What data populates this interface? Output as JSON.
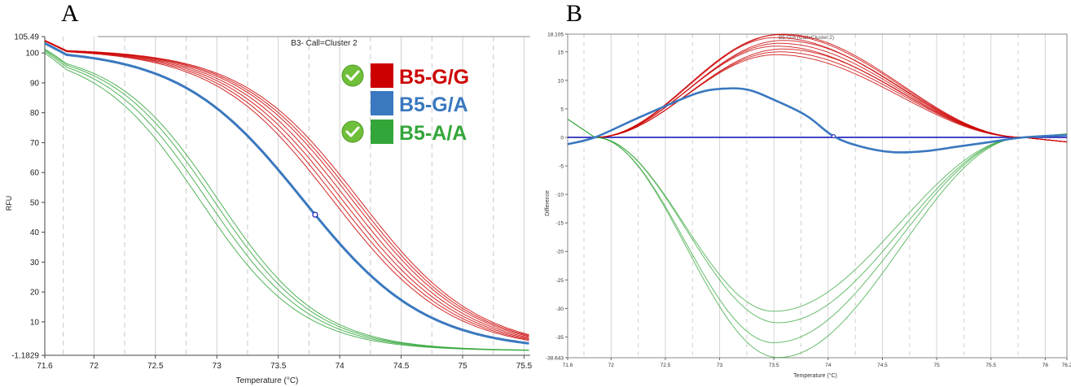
{
  "panel_labels": {
    "a": "A",
    "b": "B"
  },
  "colors": {
    "gg": "#cc0000",
    "ga": "#3a78bf",
    "aa": "#33a63a",
    "baseline": "#1a1ab8",
    "check": "#6fbf3a"
  },
  "chart_data": [
    {
      "type": "line",
      "plot_title": "B3- Call=Cluster 2",
      "xlabel": "Temperature (°C)",
      "ylabel": "RFU",
      "xlim": [
        71.6,
        75.55
      ],
      "ylim": [
        -1.1829,
        105.49
      ],
      "xticks": [
        "71.6",
        "72",
        "72.5",
        "73",
        "73.5",
        "74",
        "74.5",
        "75",
        "75.5"
      ],
      "xtick_values": [
        71.6,
        72,
        72.5,
        73,
        73.5,
        74,
        74.5,
        75,
        75.5
      ],
      "yticks": [
        "-1.1829",
        "10",
        "20",
        "30",
        "40",
        "50",
        "60",
        "70",
        "80",
        "90",
        "100",
        "105.49"
      ],
      "ytick_values": [
        -1.1829,
        10,
        20,
        30,
        40,
        50,
        60,
        70,
        80,
        90,
        100,
        105.49
      ],
      "grid": true,
      "legend": {
        "placement": "top-right",
        "entries": [
          {
            "label": "B5-G/G",
            "color": "#cc0000",
            "checked": true
          },
          {
            "label": "B5-G/A",
            "color": "#3a78bf",
            "checked": false
          },
          {
            "label": "B5-A/A",
            "color": "#33a63a",
            "checked": true
          }
        ]
      },
      "series": [
        {
          "group": "G/G",
          "color": "#cc0000",
          "tm": [
            73.94,
            73.98,
            74.02,
            74.06,
            74.1,
            74.13,
            74.16
          ],
          "width": 0.48,
          "count": 7
        },
        {
          "group": "G/A",
          "color": "#3a78bf",
          "tm": [
            73.7
          ],
          "width": 0.5,
          "count": 1
        },
        {
          "group": "A/A",
          "color": "#33a63a",
          "tm": [
            72.86,
            72.92,
            72.97,
            73.01
          ],
          "width": 0.42,
          "count": 4
        }
      ]
    },
    {
      "type": "line",
      "plot_title": "B5-G/A (Call=Cluster 2)",
      "xlabel": "Temperature (°C)",
      "ylabel": "Difference",
      "xlim": [
        71.6,
        76.2
      ],
      "ylim": [
        -38.643,
        18.105
      ],
      "xticks": [
        "71.6",
        "72",
        "72.5",
        "73",
        "73.5",
        "74",
        "74.5",
        "75",
        "75.5",
        "76",
        "76.2"
      ],
      "xtick_values": [
        71.6,
        72,
        72.5,
        73,
        73.5,
        74,
        74.5,
        75,
        75.5,
        76,
        76.2
      ],
      "yticks": [
        "-38.643",
        "-35",
        "-30",
        "-25",
        "-20",
        "-15",
        "-10",
        "-5",
        "0",
        "5",
        "10",
        "15",
        "18.105"
      ],
      "ytick_values": [
        -38.643,
        -35,
        -30,
        -25,
        -20,
        -15,
        -10,
        -5,
        0,
        5,
        10,
        15,
        18.105
      ],
      "grid": true,
      "series": [
        {
          "group": "G/G",
          "color": "#cc0000",
          "count": 9,
          "peak_x": 73.55,
          "peaks": [
            14.5,
            15.0,
            15.5,
            16.0,
            16.5,
            17.0,
            17.5,
            18.0,
            18.1
          ]
        },
        {
          "group": "G/A",
          "color": "#3a78bf",
          "count": 1,
          "points": [
            [
              71.6,
              -1.2
            ],
            [
              71.85,
              0
            ],
            [
              72.2,
              3
            ],
            [
              72.5,
              5.5
            ],
            [
              72.8,
              7.8
            ],
            [
              73.0,
              8.5
            ],
            [
              73.25,
              8.4
            ],
            [
              73.5,
              6.6
            ],
            [
              73.8,
              3.8
            ],
            [
              74.05,
              0.2
            ],
            [
              74.3,
              -1.6
            ],
            [
              74.6,
              -2.6
            ],
            [
              74.9,
              -2.4
            ],
            [
              75.2,
              -1.6
            ],
            [
              75.5,
              -0.8
            ],
            [
              75.8,
              0
            ],
            [
              76.2,
              0.4
            ]
          ]
        },
        {
          "group": "A/A",
          "color": "#33a63a",
          "count": 4,
          "trough_x": 73.5,
          "troughs": [
            -30.5,
            -32.5,
            -36.0,
            -38.6
          ]
        },
        {
          "group": "baseline",
          "color": "#1a1ab8",
          "count": 1,
          "points": [
            [
              71.6,
              0
            ],
            [
              76.2,
              0
            ]
          ]
        }
      ]
    }
  ]
}
